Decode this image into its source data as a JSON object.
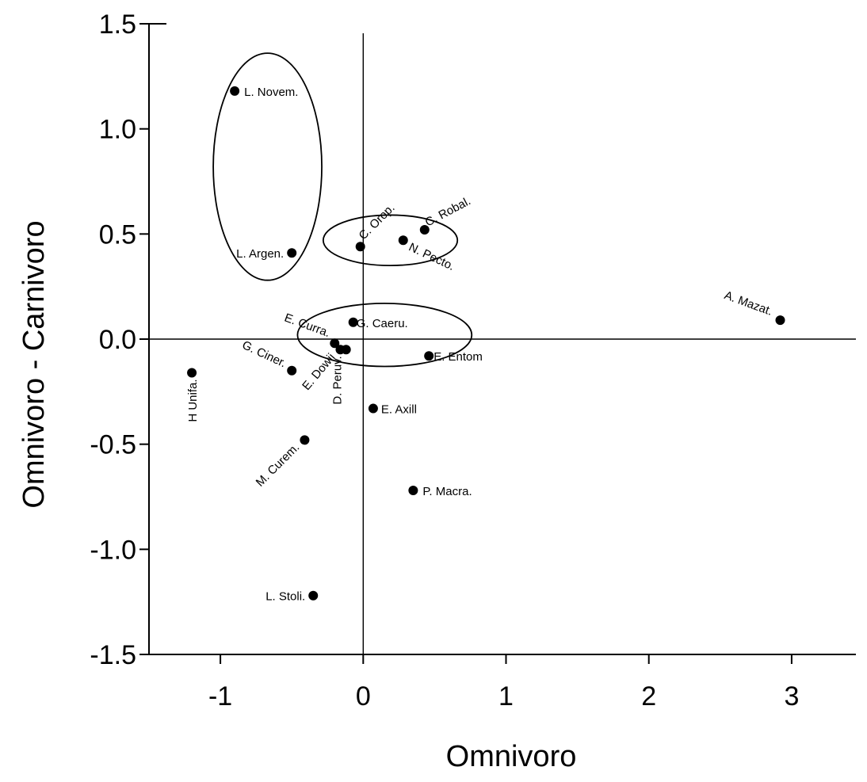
{
  "chart_data": {
    "type": "scatter",
    "title": "",
    "xlabel": "Omnivoro",
    "ylabel": "Omnivoro - Carnivoro",
    "xlim": [
      -1.5,
      3.45
    ],
    "ylim": [
      -1.5,
      1.5
    ],
    "xticks": [
      -1,
      0,
      1,
      2,
      3
    ],
    "yticks": [
      1.5,
      1.0,
      0.5,
      0.0,
      -0.5,
      -1.0,
      -1.5
    ],
    "xtick_labels": [
      "-1",
      "0",
      "1",
      "2",
      "3"
    ],
    "ytick_labels": [
      "1.5",
      "1.0",
      "0.5",
      "0.0",
      "-0.5",
      "-1.0",
      "-1.5"
    ],
    "grid": false,
    "reference_lines": {
      "x": 0,
      "y": 0
    },
    "points": [
      {
        "label": "L. Novem.",
        "x": -0.9,
        "y": 1.18
      },
      {
        "label": "L. Argen.",
        "x": -0.5,
        "y": 0.41
      },
      {
        "label": "C. Orop.",
        "x": -0.02,
        "y": 0.44
      },
      {
        "label": "C. Robal.",
        "x": 0.43,
        "y": 0.52
      },
      {
        "label": "N. Pecto.",
        "x": 0.28,
        "y": 0.47
      },
      {
        "label": "A. Mazat.",
        "x": 2.92,
        "y": 0.09
      },
      {
        "label": "G. Caeru.",
        "x": -0.07,
        "y": 0.08
      },
      {
        "label": "E. Curra.",
        "x": -0.2,
        "y": -0.02
      },
      {
        "label": "E. Dowii",
        "x": -0.16,
        "y": -0.05
      },
      {
        "label": "D. Peruv.",
        "x": -0.12,
        "y": -0.05
      },
      {
        "label": "G. Ciner.",
        "x": -0.5,
        "y": -0.15
      },
      {
        "label": "H Unifa.",
        "x": -1.2,
        "y": -0.16
      },
      {
        "label": "E. Entom",
        "x": 0.46,
        "y": -0.08
      },
      {
        "label": "E. Axill",
        "x": 0.07,
        "y": -0.33
      },
      {
        "label": "M. Curem.",
        "x": -0.41,
        "y": -0.48
      },
      {
        "label": "P. Macra.",
        "x": 0.35,
        "y": -0.72
      },
      {
        "label": "L. Stoli.",
        "x": -0.35,
        "y": -1.22
      }
    ],
    "ellipses": [
      {
        "cx": -0.67,
        "cy": 0.82,
        "rx": 0.38,
        "ry": 0.54
      },
      {
        "cx": 0.19,
        "cy": 0.47,
        "rx": 0.47,
        "ry": 0.12
      },
      {
        "cx": 0.15,
        "cy": 0.02,
        "rx": 0.61,
        "ry": 0.15
      }
    ]
  }
}
